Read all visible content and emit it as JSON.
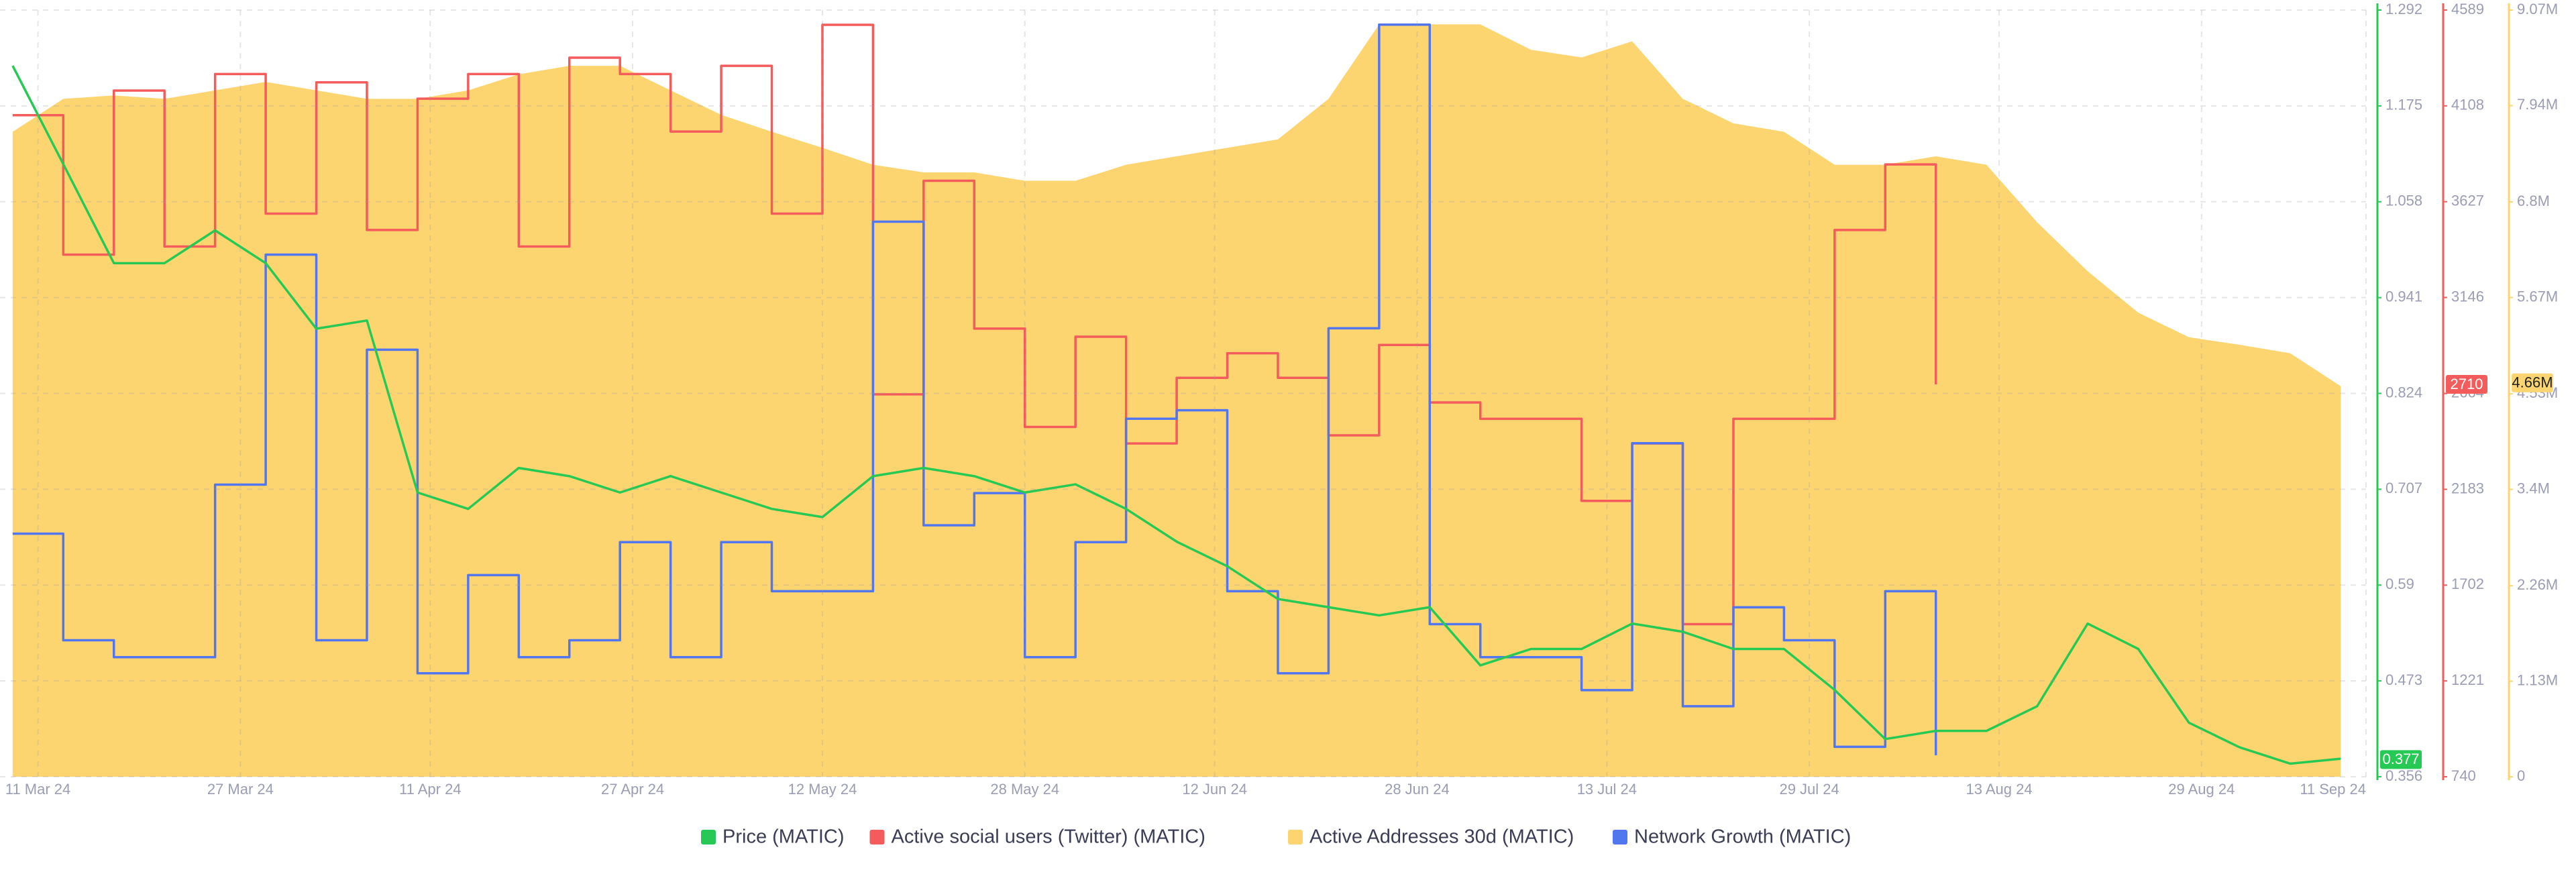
{
  "chart_data": {
    "type": "line",
    "watermark": "santiment",
    "x": [
      "2024-03-09",
      "2024-03-13",
      "2024-03-17",
      "2024-03-21",
      "2024-03-25",
      "2024-03-29",
      "2024-04-02",
      "2024-04-06",
      "2024-04-10",
      "2024-04-14",
      "2024-04-18",
      "2024-04-22",
      "2024-04-26",
      "2024-04-30",
      "2024-05-04",
      "2024-05-08",
      "2024-05-12",
      "2024-05-16",
      "2024-05-20",
      "2024-05-24",
      "2024-05-28",
      "2024-06-01",
      "2024-06-05",
      "2024-06-09",
      "2024-06-13",
      "2024-06-17",
      "2024-06-21",
      "2024-06-25",
      "2024-06-29",
      "2024-07-03",
      "2024-07-07",
      "2024-07-11",
      "2024-07-15",
      "2024-07-19",
      "2024-07-23",
      "2024-07-27",
      "2024-07-31",
      "2024-08-04",
      "2024-08-08",
      "2024-08-12",
      "2024-08-16",
      "2024-08-20",
      "2024-08-24",
      "2024-08-28",
      "2024-09-01",
      "2024-09-05",
      "2024-09-09"
    ],
    "xlim": [
      "2024-03-08",
      "2024-09-11"
    ],
    "xticks": [
      {
        "value": "2024-03-11",
        "label": "11 Mar 24"
      },
      {
        "value": "2024-03-27",
        "label": "27 Mar 24"
      },
      {
        "value": "2024-04-11",
        "label": "11 Apr 24"
      },
      {
        "value": "2024-04-27",
        "label": "27 Apr 24"
      },
      {
        "value": "2024-05-12",
        "label": "12 May 24"
      },
      {
        "value": "2024-05-28",
        "label": "28 May 24"
      },
      {
        "value": "2024-06-12",
        "label": "12 Jun 24"
      },
      {
        "value": "2024-06-28",
        "label": "28 Jun 24"
      },
      {
        "value": "2024-07-13",
        "label": "13 Jul 24"
      },
      {
        "value": "2024-07-29",
        "label": "29 Jul 24"
      },
      {
        "value": "2024-08-13",
        "label": "13 Aug 24"
      },
      {
        "value": "2024-08-29",
        "label": "29 Aug 24"
      },
      {
        "value": "2024-09-11",
        "label": "11 Sep 24"
      }
    ],
    "ylim": [
      0.356,
      1.292
    ],
    "yticks": [
      1.292,
      1.175,
      1.058,
      0.941,
      0.824,
      0.707,
      0.59,
      0.473,
      0.356
    ],
    "y2lim": [
      740,
      4589
    ],
    "y2ticks": [
      4589,
      4108,
      3627,
      3146,
      2664,
      2183,
      1702,
      1221,
      740
    ],
    "y3lim": [
      0,
      9070000
    ],
    "y3ticks": [
      {
        "value": 9070000,
        "label": "9.07M"
      },
      {
        "value": 7940000,
        "label": "7.94M"
      },
      {
        "value": 6800000,
        "label": "6.8M"
      },
      {
        "value": 5670000,
        "label": "5.67M"
      },
      {
        "value": 4530000,
        "label": "4.53M"
      },
      {
        "value": 3400000,
        "label": "3.4M"
      },
      {
        "value": 2260000,
        "label": "2.26M"
      },
      {
        "value": 1130000,
        "label": "1.13M"
      },
      0
    ],
    "y4lim": [
      0,
      100
    ],
    "grid": true,
    "legend": "bottom",
    "series": [
      {
        "name": "Active Addresses 30d (MATIC)",
        "color": "#fdd570",
        "axis": "y3",
        "style": "area",
        "current": {
          "value": 4660000,
          "label": "4.66M"
        },
        "values": [
          7630000,
          8020000,
          8060000,
          8020000,
          8120000,
          8220000,
          8120000,
          8020000,
          8020000,
          8120000,
          8310000,
          8410000,
          8410000,
          8120000,
          7830000,
          7630000,
          7440000,
          7240000,
          7150000,
          7150000,
          7050000,
          7050000,
          7240000,
          7340000,
          7440000,
          7540000,
          8020000,
          8900000,
          8900000,
          8900000,
          8600000,
          8510000,
          8700000,
          8020000,
          7730000,
          7630000,
          7240000,
          7240000,
          7340000,
          7240000,
          6560000,
          5980000,
          5490000,
          5200000,
          5110000,
          5010000,
          4620000
        ]
      },
      {
        "name": "Active social users (Twitter) (MATIC)",
        "color": "#f45b5b",
        "axis": "y2",
        "style": "step",
        "current": 2710,
        "values": [
          4061,
          3361,
          4185,
          3402,
          4268,
          3567,
          4226,
          3485,
          4144,
          4268,
          3402,
          4350,
          4268,
          3979,
          4309,
          3567,
          4515,
          2660,
          3732,
          2990,
          2496,
          2949,
          2413,
          2743,
          2866,
          2743,
          2454,
          2908,
          2619,
          2537,
          2537,
          2125,
          2413,
          1506,
          2537,
          2537,
          3485,
          3814,
          2710,
          null,
          null,
          null,
          null,
          null,
          null,
          null,
          null
        ]
      },
      {
        "name": "Network Growth (MATIC)",
        "color": "#5276f0",
        "axis": "y4",
        "style": "step",
        "values": [
          31.7,
          17.8,
          15.6,
          15.6,
          38.1,
          68.1,
          17.8,
          55.7,
          13.5,
          26.3,
          15.6,
          17.8,
          30.6,
          15.6,
          30.6,
          24.2,
          24.2,
          72.4,
          32.8,
          37,
          15.6,
          30.6,
          46.7,
          47.8,
          24.2,
          13.5,
          58.5,
          98.1,
          19.9,
          15.6,
          15.6,
          11.3,
          43.5,
          9.2,
          22.1,
          17.8,
          3.9,
          24.2,
          2.8,
          null,
          null,
          null,
          null,
          null,
          null,
          null,
          null
        ]
      },
      {
        "name": "Price (MATIC)",
        "color": "#26c953",
        "axis": "y",
        "style": "line",
        "current": 0.377,
        "values": [
          1.224,
          1.104,
          0.983,
          0.983,
          1.023,
          0.983,
          0.903,
          0.913,
          0.703,
          0.683,
          0.733,
          0.723,
          0.703,
          0.723,
          0.703,
          0.683,
          0.673,
          0.723,
          0.733,
          0.723,
          0.703,
          0.713,
          0.683,
          0.643,
          0.613,
          0.573,
          0.563,
          0.553,
          0.563,
          0.492,
          0.512,
          0.512,
          0.543,
          0.533,
          0.512,
          0.512,
          0.462,
          0.402,
          0.412,
          0.412,
          0.442,
          0.543,
          0.512,
          0.422,
          0.392,
          0.372,
          0.378
        ]
      }
    ],
    "legend_order": [
      3,
      1,
      0,
      2
    ]
  }
}
